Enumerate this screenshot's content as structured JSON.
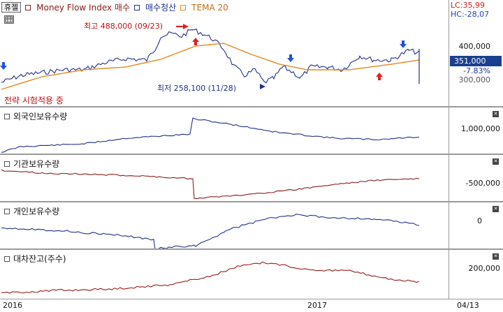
{
  "legend": {
    "badge": "휴젤",
    "indicator": "Money Flow Index 매수",
    "signal": "매수청산",
    "tema": "TEMA 20"
  },
  "lc_hc": {
    "lc": "LC:35,99",
    "hc": "HC:-28,07"
  },
  "price_pane": {
    "high_annotation": "최고 488,000 (09/23)",
    "low_annotation": "최저 258,100 (11/28)",
    "strategy_note": "전략 시험적용 중",
    "axis_labels": [
      "400,000",
      "300,000"
    ],
    "current_price": "351,000",
    "change_pct": "-7.83%"
  },
  "panes": [
    {
      "title": "외국인보유수량",
      "axis_label": "1,000,000"
    },
    {
      "title": "기관보유수량",
      "axis_label": "-500,000"
    },
    {
      "title": "개인보유수량",
      "axis_label": "0"
    },
    {
      "title": "대차잔고(주수)",
      "axis_label": "200,000"
    }
  ],
  "xaxis": {
    "labels": [
      "2016",
      "2017",
      "04/13"
    ]
  },
  "icons": {
    "close": "close-icon",
    "grid": "grid-icon"
  },
  "colors": {
    "price_line": "#1f2f8a",
    "tema_line": "#e08a1e",
    "foreign_line": "#1f2f8a",
    "institution_line": "#8a1a1a",
    "individual_line": "#1f2f8a",
    "lending_line": "#9a1a1a",
    "buy_arrow": "#e02020",
    "sell_arrow": "#2050e0"
  }
}
